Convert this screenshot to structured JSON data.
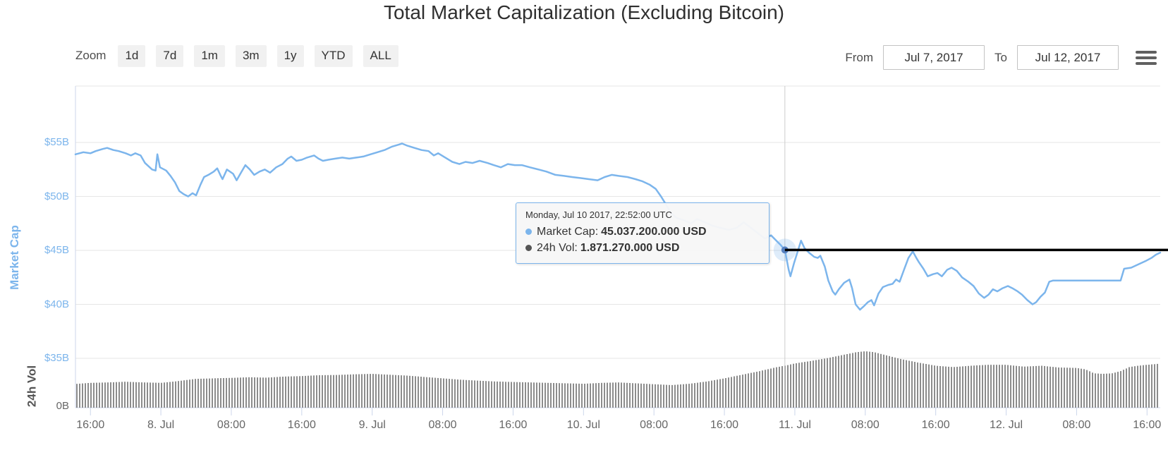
{
  "title": "Total Market Capitalization (Excluding Bitcoin)",
  "toolbar": {
    "zoom_label": "Zoom",
    "zoom_buttons": [
      "1d",
      "7d",
      "1m",
      "3m",
      "1y",
      "YTD",
      "ALL"
    ],
    "from_label": "From",
    "from_value": "Jul 7, 2017",
    "to_label": "To",
    "to_value": "Jul 12, 2017",
    "menu_icon": "hamburger-icon"
  },
  "tooltip": {
    "date": "Monday, Jul 10 2017, 22:52:00 UTC",
    "rows": [
      {
        "label": "Market Cap:",
        "value": "45.037.200.000 USD",
        "bullet_color": "#7cb5ec"
      },
      {
        "label": "24h Vol:",
        "value": "1.871.270.000 USD",
        "bullet_color": "#555555"
      }
    ]
  },
  "colors": {
    "line": "#7cb5ec",
    "volume_bar": "#8c8c8c",
    "grid": "#e6e6e6",
    "axis_line": "#ccd6eb",
    "crosshair": "#cccccc",
    "annotation_line": "#000000",
    "hover_halo": "rgba(124,181,236,0.25)",
    "hover_dot": "#5580c0",
    "y_label_blue": "#7cb5ec",
    "x_label_gray": "#666666"
  },
  "chart_data": {
    "type": "line",
    "title": "Total Market Capitalization (Excluding Bitcoin)",
    "x_unit": "hours since Jul 7 2017 16:00 UTC",
    "x_range": [
      -1.7,
      121.5
    ],
    "x_tick_hours": [
      0,
      8,
      16,
      24,
      32,
      40,
      48,
      56,
      64,
      72,
      80,
      88,
      96,
      104,
      112,
      120
    ],
    "x_tick_labels": [
      "16:00",
      "8. Jul",
      "08:00",
      "16:00",
      "9. Jul",
      "08:00",
      "16:00",
      "10. Jul",
      "08:00",
      "16:00",
      "11. Jul",
      "08:00",
      "16:00",
      "12. Jul",
      "08:00",
      "16:00"
    ],
    "grid": "horizontal",
    "legend": "none",
    "y_axis_marketcap": {
      "label": "Market Cap",
      "tick_labels": [
        "$55B",
        "$50B",
        "$45B",
        "$40B",
        "$35B"
      ],
      "tick_values": [
        55,
        50,
        45,
        40,
        35
      ],
      "range": [
        35,
        55
      ],
      "unit": "$B USD"
    },
    "y_axis_volume": {
      "label": "24h Vol",
      "tick_labels": [
        "0B"
      ],
      "tick_values": [
        0
      ],
      "range": [
        0,
        2.75
      ],
      "unit": "$B USD"
    },
    "annotations": {
      "crosshair_hour": 78.87,
      "hover_point": {
        "hour": 78.87,
        "marketcap_b": 45.0372,
        "volume_b": 1.87127
      },
      "hline": {
        "value_b": 45.0372,
        "from_hour": 78.87,
        "to_hour": 122.5
      }
    },
    "series": [
      {
        "name": "Market Cap",
        "type": "line",
        "unit": "$B",
        "color": "#7cb5ec",
        "points": [
          [
            -1.7,
            53.9
          ],
          [
            -0.8,
            54.1
          ],
          [
            0.0,
            54.0
          ],
          [
            0.6,
            54.2
          ],
          [
            1.4,
            54.4
          ],
          [
            1.9,
            54.5
          ],
          [
            2.6,
            54.3
          ],
          [
            3.2,
            54.2
          ],
          [
            4.0,
            54.0
          ],
          [
            4.6,
            53.8
          ],
          [
            5.1,
            54.0
          ],
          [
            5.7,
            53.8
          ],
          [
            6.2,
            53.1
          ],
          [
            6.6,
            52.8
          ],
          [
            7.0,
            52.5
          ],
          [
            7.4,
            52.4
          ],
          [
            7.6,
            53.9
          ],
          [
            7.9,
            52.7
          ],
          [
            8.6,
            52.4
          ],
          [
            9.1,
            51.9
          ],
          [
            9.6,
            51.3
          ],
          [
            10.1,
            50.5
          ],
          [
            10.6,
            50.2
          ],
          [
            11.1,
            50.0
          ],
          [
            11.6,
            50.3
          ],
          [
            12.0,
            50.1
          ],
          [
            12.5,
            51.1
          ],
          [
            12.9,
            51.8
          ],
          [
            13.4,
            52.0
          ],
          [
            14.0,
            52.3
          ],
          [
            14.4,
            52.6
          ],
          [
            14.8,
            51.9
          ],
          [
            15.0,
            51.6
          ],
          [
            15.5,
            52.5
          ],
          [
            16.2,
            52.1
          ],
          [
            16.6,
            51.5
          ],
          [
            17.1,
            52.2
          ],
          [
            17.6,
            52.9
          ],
          [
            18.1,
            52.5
          ],
          [
            18.6,
            52.0
          ],
          [
            19.2,
            52.3
          ],
          [
            19.8,
            52.5
          ],
          [
            20.4,
            52.2
          ],
          [
            21.1,
            52.7
          ],
          [
            21.8,
            53.0
          ],
          [
            22.4,
            53.5
          ],
          [
            22.8,
            53.7
          ],
          [
            23.4,
            53.3
          ],
          [
            24.0,
            53.4
          ],
          [
            24.6,
            53.6
          ],
          [
            25.4,
            53.8
          ],
          [
            25.9,
            53.5
          ],
          [
            26.4,
            53.3
          ],
          [
            27.0,
            53.4
          ],
          [
            27.8,
            53.5
          ],
          [
            28.6,
            53.6
          ],
          [
            29.4,
            53.5
          ],
          [
            30.2,
            53.6
          ],
          [
            31.0,
            53.7
          ],
          [
            31.8,
            53.9
          ],
          [
            32.6,
            54.1
          ],
          [
            33.4,
            54.3
          ],
          [
            34.2,
            54.6
          ],
          [
            35.0,
            54.8
          ],
          [
            35.4,
            54.9
          ],
          [
            36.0,
            54.7
          ],
          [
            36.8,
            54.5
          ],
          [
            37.6,
            54.3
          ],
          [
            38.4,
            54.2
          ],
          [
            39.0,
            53.8
          ],
          [
            39.5,
            54.0
          ],
          [
            40.3,
            53.6
          ],
          [
            41.1,
            53.2
          ],
          [
            41.9,
            53.0
          ],
          [
            42.6,
            53.2
          ],
          [
            43.4,
            53.1
          ],
          [
            44.2,
            53.3
          ],
          [
            45.1,
            53.1
          ],
          [
            45.8,
            52.9
          ],
          [
            46.6,
            52.7
          ],
          [
            47.4,
            53.0
          ],
          [
            48.2,
            52.9
          ],
          [
            49.0,
            52.9
          ],
          [
            49.9,
            52.7
          ],
          [
            50.9,
            52.5
          ],
          [
            51.8,
            52.3
          ],
          [
            52.8,
            52.0
          ],
          [
            53.8,
            51.9
          ],
          [
            54.7,
            51.8
          ],
          [
            55.7,
            51.7
          ],
          [
            56.6,
            51.6
          ],
          [
            57.6,
            51.5
          ],
          [
            58.4,
            51.8
          ],
          [
            59.2,
            52.0
          ],
          [
            60.0,
            51.9
          ],
          [
            61.0,
            51.8
          ],
          [
            61.9,
            51.6
          ],
          [
            62.7,
            51.4
          ],
          [
            63.5,
            51.1
          ],
          [
            64.2,
            50.7
          ],
          [
            64.8,
            50.0
          ],
          [
            65.4,
            49.2
          ],
          [
            65.9,
            48.5
          ],
          [
            66.6,
            48.0
          ],
          [
            67.4,
            47.8
          ],
          [
            68.2,
            47.5
          ],
          [
            68.9,
            47.9
          ],
          [
            69.8,
            47.6
          ],
          [
            70.6,
            47.3
          ],
          [
            71.5,
            47.1
          ],
          [
            72.5,
            46.9
          ],
          [
            73.4,
            47.1
          ],
          [
            74.2,
            47.6
          ],
          [
            75.0,
            47.1
          ],
          [
            75.8,
            46.6
          ],
          [
            76.6,
            46.1
          ],
          [
            77.3,
            46.4
          ],
          [
            77.9,
            45.9
          ],
          [
            78.4,
            45.5
          ],
          [
            78.87,
            45.04
          ],
          [
            79.3,
            43.2
          ],
          [
            79.5,
            42.6
          ],
          [
            79.9,
            43.8
          ],
          [
            80.4,
            45.1
          ],
          [
            80.7,
            45.9
          ],
          [
            81.1,
            45.2
          ],
          [
            81.6,
            44.8
          ],
          [
            82.2,
            44.4
          ],
          [
            82.6,
            44.3
          ],
          [
            82.9,
            44.5
          ],
          [
            83.4,
            43.5
          ],
          [
            83.8,
            42.2
          ],
          [
            84.3,
            41.2
          ],
          [
            84.6,
            40.9
          ],
          [
            85.0,
            41.4
          ],
          [
            85.6,
            42.0
          ],
          [
            86.2,
            42.3
          ],
          [
            86.5,
            41.5
          ],
          [
            86.9,
            40.0
          ],
          [
            87.4,
            39.5
          ],
          [
            87.8,
            39.8
          ],
          [
            88.3,
            40.2
          ],
          [
            88.7,
            40.4
          ],
          [
            89.0,
            39.9
          ],
          [
            89.5,
            41.0
          ],
          [
            90.0,
            41.6
          ],
          [
            90.6,
            41.8
          ],
          [
            91.1,
            41.9
          ],
          [
            91.5,
            42.3
          ],
          [
            91.9,
            42.1
          ],
          [
            92.4,
            43.2
          ],
          [
            92.9,
            44.3
          ],
          [
            93.4,
            44.9
          ],
          [
            93.8,
            44.3
          ],
          [
            94.1,
            43.9
          ],
          [
            94.6,
            43.3
          ],
          [
            95.1,
            42.6
          ],
          [
            95.7,
            42.8
          ],
          [
            96.2,
            42.9
          ],
          [
            96.7,
            42.6
          ],
          [
            97.3,
            43.2
          ],
          [
            97.8,
            43.4
          ],
          [
            98.4,
            43.1
          ],
          [
            99.0,
            42.5
          ],
          [
            99.7,
            42.1
          ],
          [
            100.3,
            41.7
          ],
          [
            100.9,
            41.0
          ],
          [
            101.5,
            40.6
          ],
          [
            102.0,
            40.9
          ],
          [
            102.5,
            41.4
          ],
          [
            103.0,
            41.2
          ],
          [
            103.6,
            41.5
          ],
          [
            104.2,
            41.7
          ],
          [
            104.7,
            41.5
          ],
          [
            105.3,
            41.2
          ],
          [
            105.8,
            40.9
          ],
          [
            106.4,
            40.4
          ],
          [
            107.0,
            40.0
          ],
          [
            107.4,
            40.2
          ],
          [
            107.9,
            40.7
          ],
          [
            108.4,
            41.1
          ],
          [
            108.9,
            42.1
          ],
          [
            109.3,
            42.2
          ],
          [
            117.0,
            42.2
          ],
          [
            117.4,
            43.3
          ],
          [
            118.2,
            43.4
          ],
          [
            119.0,
            43.7
          ],
          [
            119.8,
            44.0
          ],
          [
            120.5,
            44.3
          ],
          [
            121.0,
            44.6
          ],
          [
            121.5,
            44.8
          ]
        ]
      },
      {
        "name": "24h Vol",
        "type": "bar",
        "unit": "$B",
        "color": "#8c8c8c",
        "points": [
          [
            -1.7,
            1.05
          ],
          [
            0,
            1.1
          ],
          [
            2,
            1.12
          ],
          [
            4,
            1.15
          ],
          [
            6,
            1.12
          ],
          [
            8,
            1.1
          ],
          [
            10,
            1.18
          ],
          [
            12,
            1.28
          ],
          [
            14,
            1.3
          ],
          [
            16,
            1.32
          ],
          [
            18,
            1.35
          ],
          [
            20,
            1.33
          ],
          [
            22,
            1.38
          ],
          [
            24,
            1.4
          ],
          [
            26,
            1.44
          ],
          [
            28,
            1.45
          ],
          [
            30,
            1.48
          ],
          [
            32,
            1.5
          ],
          [
            34,
            1.46
          ],
          [
            36,
            1.42
          ],
          [
            38,
            1.36
          ],
          [
            40,
            1.3
          ],
          [
            42,
            1.24
          ],
          [
            44,
            1.2
          ],
          [
            46,
            1.16
          ],
          [
            48,
            1.14
          ],
          [
            50,
            1.12
          ],
          [
            52,
            1.1
          ],
          [
            54,
            1.08
          ],
          [
            56,
            1.06
          ],
          [
            58,
            1.1
          ],
          [
            60,
            1.12
          ],
          [
            62,
            1.08
          ],
          [
            64,
            1.04
          ],
          [
            66,
            1.0
          ],
          [
            68,
            1.06
          ],
          [
            70,
            1.16
          ],
          [
            72,
            1.3
          ],
          [
            74,
            1.46
          ],
          [
            76,
            1.62
          ],
          [
            78,
            1.8
          ],
          [
            79,
            1.87
          ],
          [
            80,
            1.96
          ],
          [
            82,
            2.08
          ],
          [
            84,
            2.22
          ],
          [
            86,
            2.38
          ],
          [
            87,
            2.46
          ],
          [
            88,
            2.5
          ],
          [
            89,
            2.46
          ],
          [
            90,
            2.36
          ],
          [
            92,
            2.16
          ],
          [
            94,
            2.0
          ],
          [
            96,
            1.86
          ],
          [
            98,
            1.8
          ],
          [
            100,
            1.86
          ],
          [
            102,
            1.9
          ],
          [
            104,
            1.9
          ],
          [
            106,
            1.82
          ],
          [
            108,
            1.86
          ],
          [
            110,
            1.78
          ],
          [
            112,
            1.76
          ],
          [
            113,
            1.7
          ],
          [
            114,
            1.52
          ],
          [
            115,
            1.5
          ],
          [
            116,
            1.52
          ],
          [
            117,
            1.62
          ],
          [
            118,
            1.8
          ],
          [
            119,
            1.86
          ],
          [
            120,
            1.9
          ],
          [
            121.5,
            1.95
          ]
        ]
      }
    ]
  }
}
